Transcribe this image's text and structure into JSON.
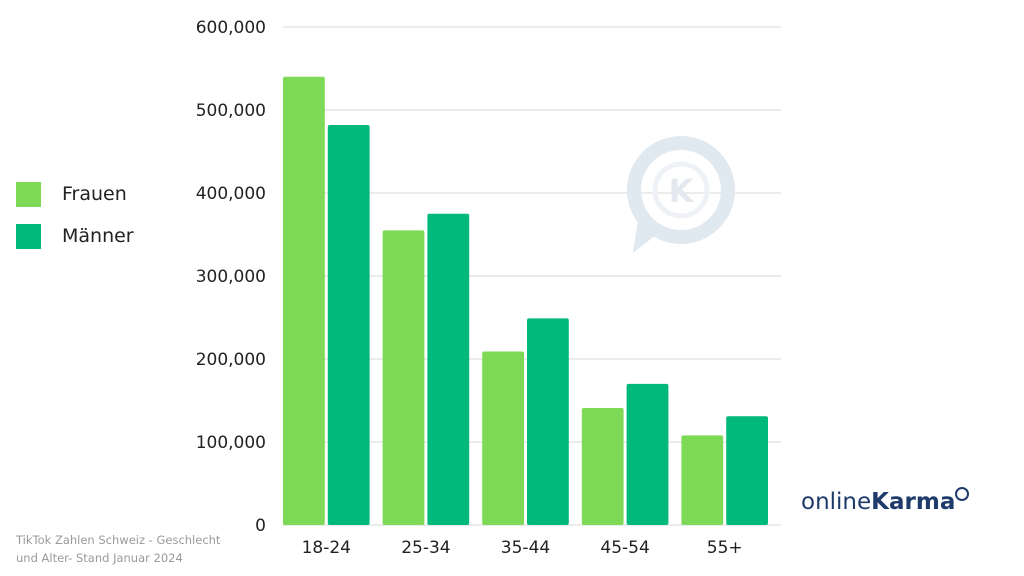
{
  "chart_data": {
    "type": "bar",
    "categories": [
      "18-24",
      "25-34",
      "35-44",
      "45-54",
      "55+"
    ],
    "series": [
      {
        "name": "Frauen",
        "values": [
          540000,
          355000,
          209000,
          141000,
          108000
        ],
        "color": "#7ed957"
      },
      {
        "name": "Männer",
        "values": [
          482000,
          375000,
          249000,
          170000,
          131000
        ],
        "color": "#00b97a"
      }
    ],
    "ylim": [
      0,
      600000
    ],
    "yticks": [
      "0",
      "100,000",
      "200,000",
      "300,000",
      "400,000",
      "500,000",
      "600,000"
    ],
    "grid": true,
    "legend_position": "left"
  },
  "caption": {
    "line1": "TikTok Zahlen Schweiz - Geschlecht",
    "line2": "und Alter- Stand Januar 2024"
  },
  "brand": {
    "prefix": "online",
    "strong": "Karma"
  },
  "watermark": {
    "letter": "K"
  },
  "icons": {
    "watermark": "karma-speech-bubble-icon"
  }
}
